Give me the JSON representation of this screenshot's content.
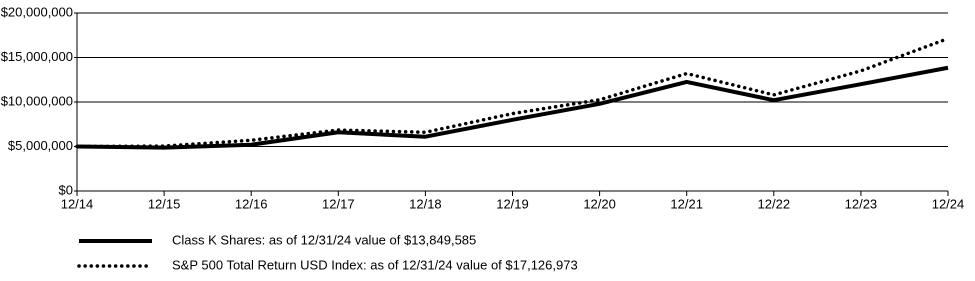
{
  "chart_data": {
    "type": "line",
    "categories": [
      "12/14",
      "12/15",
      "12/16",
      "12/17",
      "12/18",
      "12/19",
      "12/20",
      "12/21",
      "12/22",
      "12/23",
      "12/24"
    ],
    "series": [
      {
        "name": "Class K Shares: as of 12/31/24 value of $13,849,585",
        "color": "#000000",
        "style": "solid",
        "values": [
          5000000,
          4880000,
          5200000,
          6600000,
          6100000,
          8000000,
          9800000,
          12250000,
          10200000,
          12000000,
          13849585
        ]
      },
      {
        "name": "S&P 500 Total Return USD Index: as of 12/31/24 value of $17,126,973",
        "color": "#000000",
        "style": "dotted",
        "values": [
          5000000,
          5050000,
          5700000,
          6850000,
          6600000,
          8700000,
          10250000,
          13200000,
          10800000,
          13500000,
          17126973
        ]
      }
    ],
    "ylim": [
      0,
      20000000
    ],
    "yticks": [
      {
        "value": 0,
        "label": "$0"
      },
      {
        "value": 5000000,
        "label": "$5,000,000"
      },
      {
        "value": 10000000,
        "label": "$10,000,000"
      },
      {
        "value": 15000000,
        "label": "$15,000,000"
      },
      {
        "value": 20000000,
        "label": "$20,000,000"
      }
    ],
    "grid": true
  }
}
